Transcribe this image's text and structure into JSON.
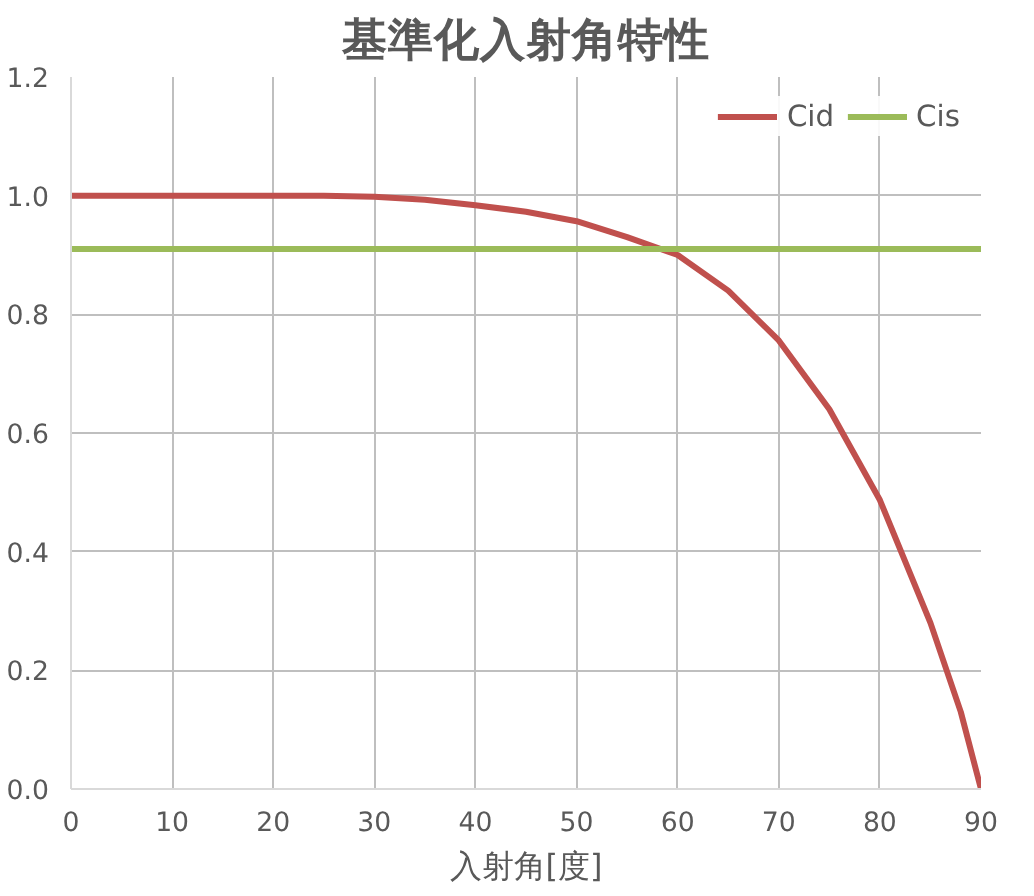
{
  "chart_data": {
    "type": "line",
    "title": "基準化入射角特性",
    "xlabel": "入射角[度]",
    "x": [
      0,
      10,
      20,
      25,
      30,
      35,
      40,
      45,
      50,
      55,
      60,
      65,
      70,
      75,
      80,
      85,
      88,
      90
    ],
    "series": [
      {
        "name": "Cid",
        "color": "#c0504d",
        "values": [
          1.0,
          1.0,
          1.0,
          1.0,
          0.998,
          0.993,
          0.984,
          0.973,
          0.957,
          0.93,
          0.9,
          0.84,
          0.756,
          0.64,
          0.487,
          0.28,
          0.13,
          0.0
        ]
      },
      {
        "name": "Cis",
        "color": "#9bbb59",
        "values": [
          0.91,
          0.91,
          0.91,
          0.91,
          0.91,
          0.91,
          0.91,
          0.91,
          0.91,
          0.91,
          0.91,
          0.91,
          0.91,
          0.91,
          0.91,
          0.91,
          0.91,
          0.91
        ]
      }
    ],
    "xlim": [
      0,
      90
    ],
    "xticks": [
      0,
      10,
      20,
      30,
      40,
      50,
      60,
      70,
      80,
      90
    ],
    "ylim": [
      0,
      1.2
    ],
    "yticks": [
      {
        "value": 0,
        "label": "0.0"
      },
      {
        "value": 0.2,
        "label": "0.2"
      },
      {
        "value": 0.4,
        "label": "0.4"
      },
      {
        "value": 0.6,
        "label": "0.6"
      },
      {
        "value": 0.8,
        "label": "0.8"
      },
      {
        "value": 1.0,
        "label": "1.0"
      },
      {
        "value": 1.2,
        "label": "1.2"
      }
    ],
    "grid": true,
    "legend": "top right",
    "marker": "none",
    "line_style": "solid"
  }
}
